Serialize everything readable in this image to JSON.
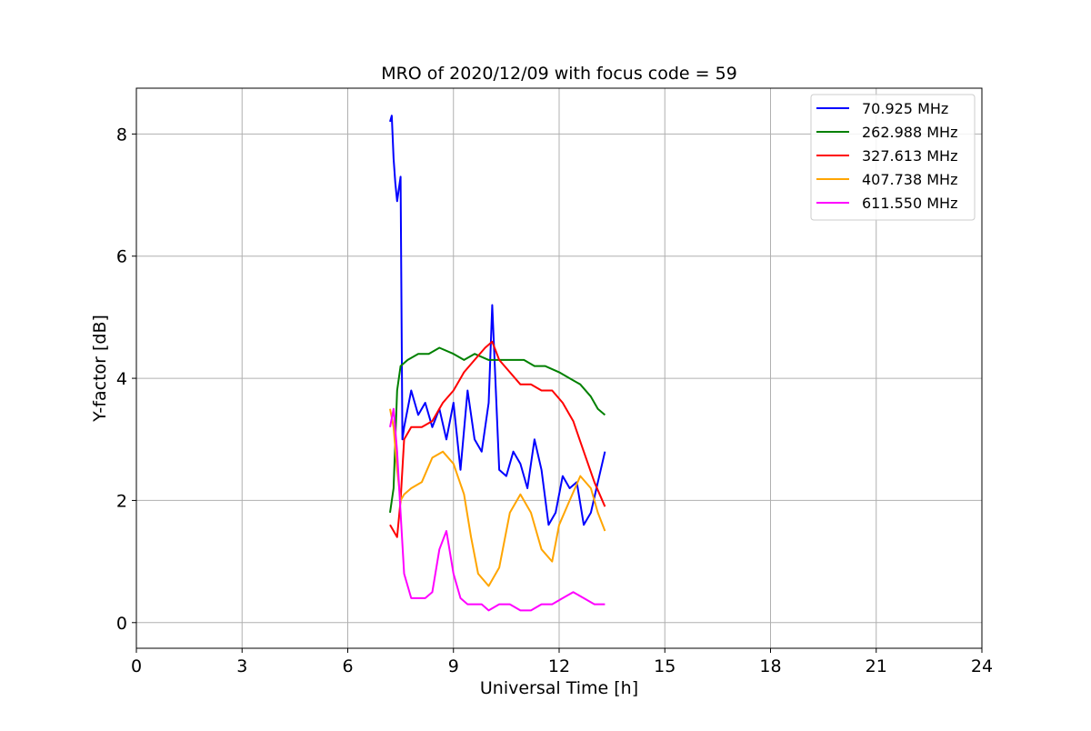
{
  "chart_data": {
    "type": "line",
    "title": "MRO of 2020/12/09 with focus code = 59",
    "xlabel": "Universal Time [h]",
    "ylabel": "Y-factor [dB]",
    "xlim": [
      0,
      24
    ],
    "ylim": [
      -0.42,
      8.75
    ],
    "xticks": [
      0,
      3,
      6,
      9,
      12,
      15,
      18,
      21,
      24
    ],
    "yticks": [
      0,
      2,
      4,
      6,
      8
    ],
    "grid": true,
    "legend_position": "top-right",
    "series": [
      {
        "name": "70.925 MHz",
        "color": "#0000ff",
        "x": [
          7.2,
          7.25,
          7.3,
          7.35,
          7.4,
          7.5,
          7.55,
          7.6,
          7.8,
          8.0,
          8.2,
          8.4,
          8.6,
          8.8,
          9.0,
          9.2,
          9.4,
          9.6,
          9.8,
          10.0,
          10.1,
          10.3,
          10.5,
          10.7,
          10.9,
          11.1,
          11.3,
          11.5,
          11.7,
          11.9,
          12.1,
          12.3,
          12.5,
          12.7,
          12.9,
          13.1,
          13.3
        ],
        "y": [
          8.2,
          8.3,
          7.6,
          7.2,
          6.9,
          7.3,
          3.0,
          3.2,
          3.8,
          3.4,
          3.6,
          3.2,
          3.5,
          3.0,
          3.6,
          2.5,
          3.8,
          3.0,
          2.8,
          3.6,
          5.2,
          2.5,
          2.4,
          2.8,
          2.6,
          2.2,
          3.0,
          2.5,
          1.6,
          1.8,
          2.4,
          2.2,
          2.3,
          1.6,
          1.8,
          2.3,
          2.8
        ]
      },
      {
        "name": "262.988 MHz",
        "color": "#008000",
        "x": [
          7.2,
          7.3,
          7.4,
          7.5,
          7.7,
          8.0,
          8.3,
          8.6,
          9.0,
          9.3,
          9.6,
          10.0,
          10.3,
          10.6,
          11.0,
          11.3,
          11.6,
          12.0,
          12.3,
          12.6,
          12.9,
          13.1,
          13.3
        ],
        "y": [
          1.8,
          2.2,
          3.8,
          4.2,
          4.3,
          4.4,
          4.4,
          4.5,
          4.4,
          4.3,
          4.4,
          4.3,
          4.3,
          4.3,
          4.3,
          4.2,
          4.2,
          4.1,
          4.0,
          3.9,
          3.7,
          3.5,
          3.4
        ]
      },
      {
        "name": "327.613 MHz",
        "color": "#ff0000",
        "x": [
          7.2,
          7.3,
          7.4,
          7.5,
          7.6,
          7.8,
          8.1,
          8.4,
          8.7,
          9.0,
          9.3,
          9.6,
          9.9,
          10.1,
          10.3,
          10.6,
          10.9,
          11.2,
          11.5,
          11.8,
          12.1,
          12.4,
          12.7,
          13.0,
          13.3
        ],
        "y": [
          1.6,
          1.5,
          1.4,
          2.0,
          3.0,
          3.2,
          3.2,
          3.3,
          3.6,
          3.8,
          4.1,
          4.3,
          4.5,
          4.6,
          4.3,
          4.1,
          3.9,
          3.9,
          3.8,
          3.8,
          3.6,
          3.3,
          2.8,
          2.3,
          1.9
        ]
      },
      {
        "name": "407.738 MHz",
        "color": "#ffa500",
        "x": [
          7.2,
          7.3,
          7.4,
          7.5,
          7.6,
          7.8,
          8.1,
          8.4,
          8.7,
          9.0,
          9.3,
          9.5,
          9.7,
          10.0,
          10.3,
          10.6,
          10.9,
          11.2,
          11.5,
          11.8,
          12.0,
          12.3,
          12.6,
          12.9,
          13.1,
          13.3
        ],
        "y": [
          3.5,
          3.2,
          2.5,
          2.0,
          2.1,
          2.2,
          2.3,
          2.7,
          2.8,
          2.6,
          2.1,
          1.4,
          0.8,
          0.6,
          0.9,
          1.8,
          2.1,
          1.8,
          1.2,
          1.0,
          1.6,
          2.0,
          2.4,
          2.2,
          1.8,
          1.5
        ]
      },
      {
        "name": "611.550 MHz",
        "color": "#ff00ff",
        "x": [
          7.2,
          7.3,
          7.4,
          7.5,
          7.6,
          7.8,
          8.0,
          8.2,
          8.4,
          8.6,
          8.8,
          9.0,
          9.2,
          9.4,
          9.6,
          9.8,
          10.0,
          10.3,
          10.6,
          10.9,
          11.2,
          11.5,
          11.8,
          12.1,
          12.4,
          12.7,
          13.0,
          13.3
        ],
        "y": [
          3.2,
          3.5,
          2.8,
          1.8,
          0.8,
          0.4,
          0.4,
          0.4,
          0.5,
          1.2,
          1.5,
          0.8,
          0.4,
          0.3,
          0.3,
          0.3,
          0.2,
          0.3,
          0.3,
          0.2,
          0.2,
          0.3,
          0.3,
          0.4,
          0.5,
          0.4,
          0.3,
          0.3
        ]
      }
    ]
  }
}
